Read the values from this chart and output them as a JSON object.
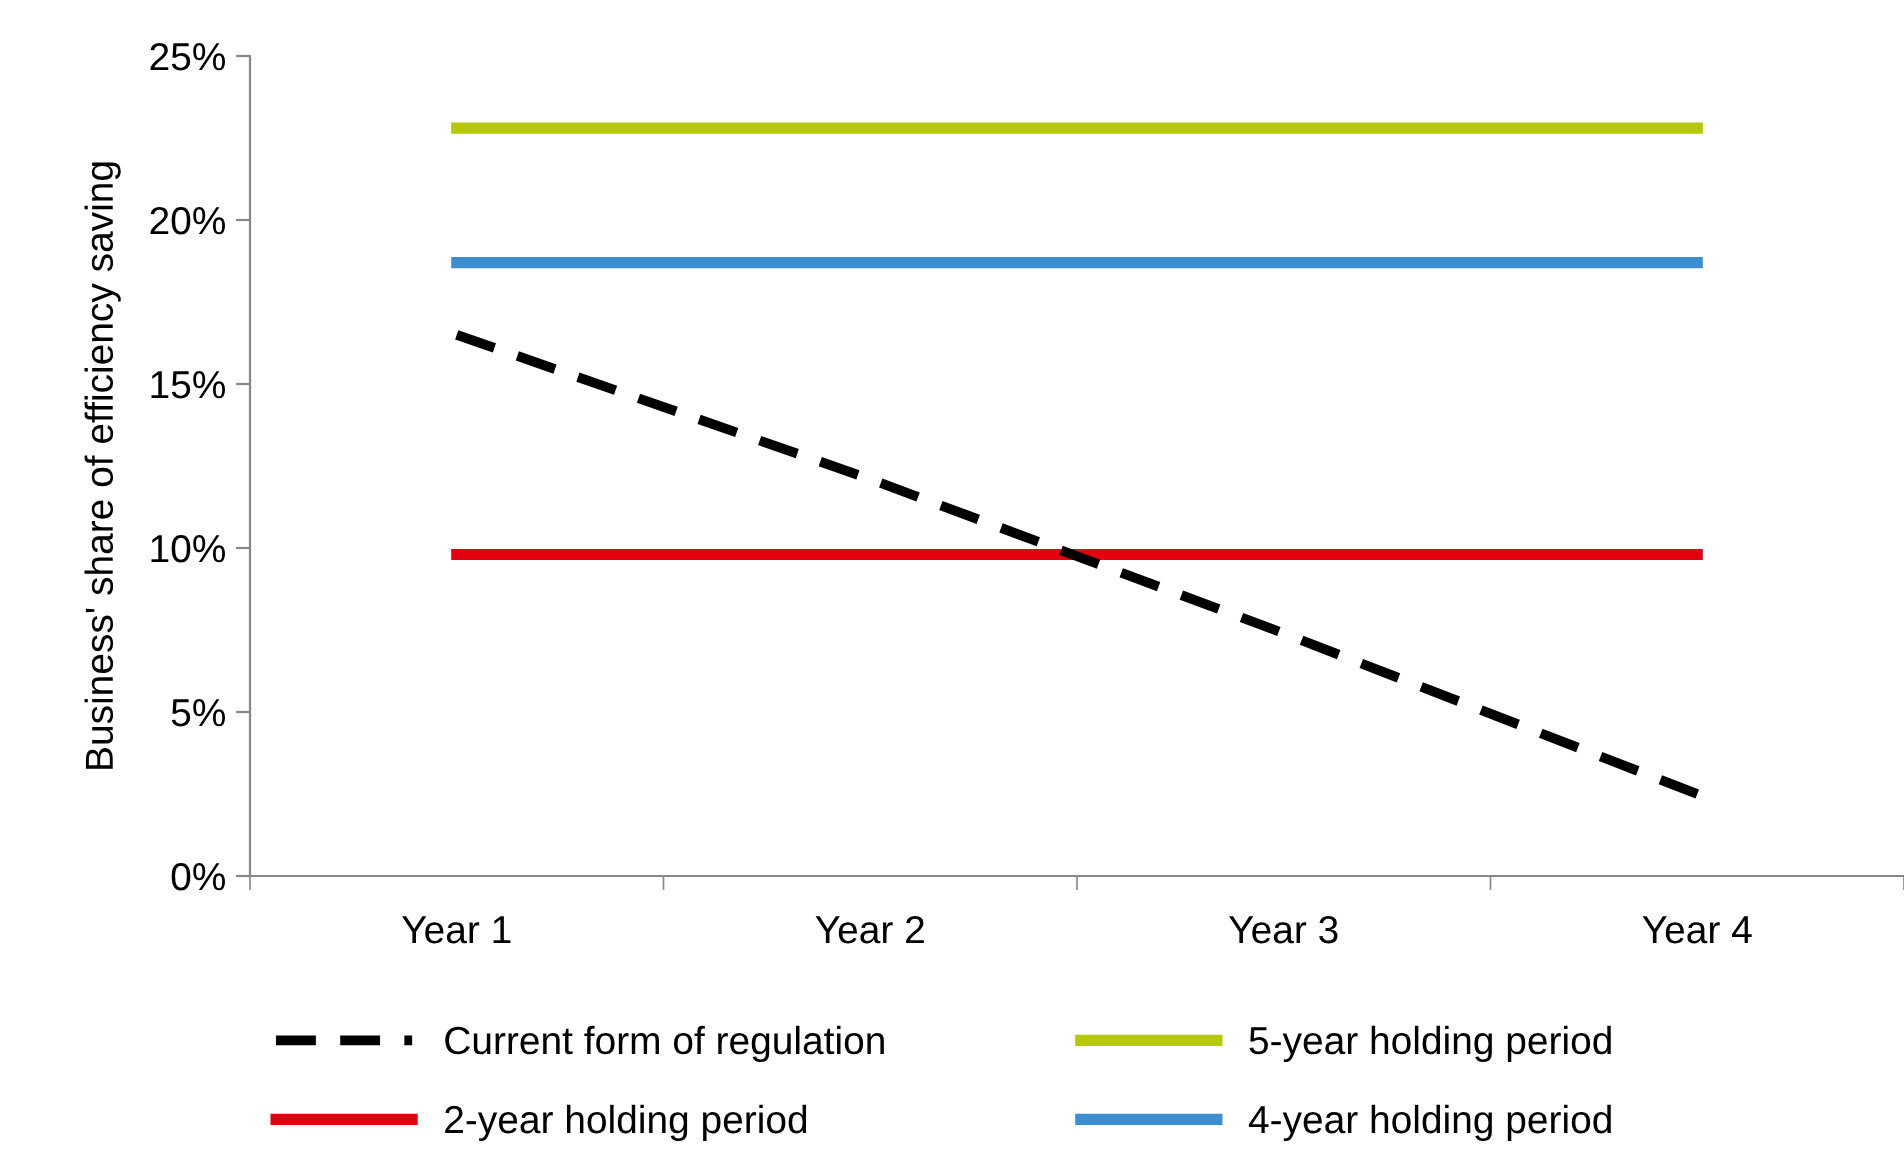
{
  "chart_data": {
    "type": "line",
    "ylabel": "Business' share of efficiency saving",
    "categories": [
      "Year 1",
      "Year 2",
      "Year 3",
      "Year 4"
    ],
    "ylim": [
      0,
      25
    ],
    "yticks": [
      {
        "value": 0,
        "label": "0%"
      },
      {
        "value": 5,
        "label": "5%"
      },
      {
        "value": 10,
        "label": "10%"
      },
      {
        "value": 15,
        "label": "15%"
      },
      {
        "value": 20,
        "label": "20%"
      },
      {
        "value": 25,
        "label": "25%"
      }
    ],
    "grid": false,
    "legend": "bottom",
    "marker": "none",
    "series": [
      {
        "name": "Current form of regulation",
        "color": "#000000",
        "line_style": "dashed",
        "values": [
          16.5,
          12.1,
          7.4,
          2.5
        ]
      },
      {
        "name": "5-year holding period",
        "color": "#b5c900",
        "line_style": "solid",
        "values": [
          22.8,
          22.8,
          22.8,
          22.8
        ]
      },
      {
        "name": "2-year holding period",
        "color": "#e3000f",
        "line_style": "solid",
        "values": [
          9.8,
          9.8,
          9.8,
          9.8
        ]
      },
      {
        "name": "4-year holding period",
        "color": "#3b8fd0",
        "line_style": "solid",
        "values": [
          18.7,
          18.7,
          18.7,
          18.7
        ]
      }
    ]
  }
}
